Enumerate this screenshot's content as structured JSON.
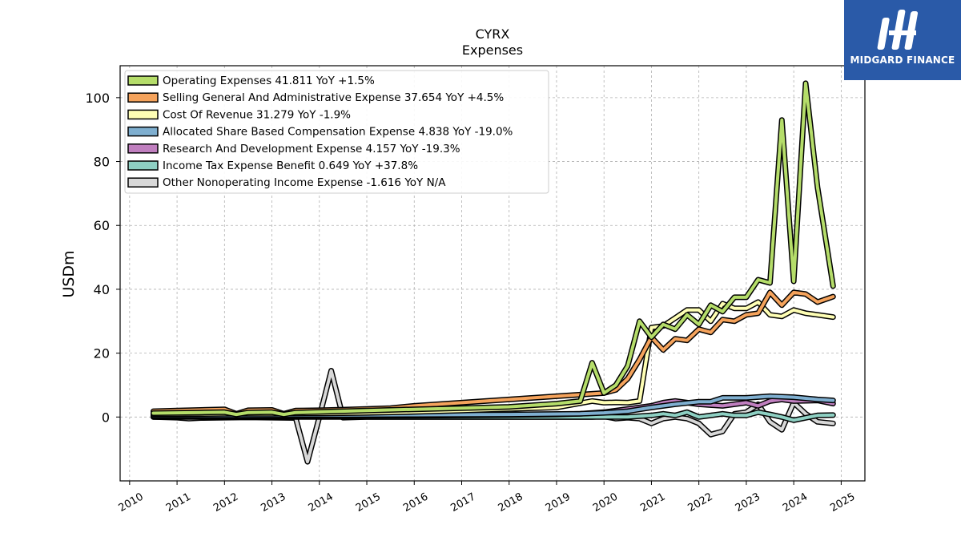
{
  "brand": {
    "name": "MIDGARD FINANCE",
    "color": "#2a5aa8"
  },
  "chart_data": {
    "type": "line",
    "title": "CYRX",
    "subtitle": "Expenses",
    "xlabel": "",
    "ylabel": "USDm",
    "xlim": [
      2009.8,
      2025.5
    ],
    "ylim": [
      -20,
      110
    ],
    "grid": true,
    "legend_position": "top-left",
    "x_ticks": [
      "2010",
      "2011",
      "2012",
      "2013",
      "2014",
      "2015",
      "2016",
      "2017",
      "2018",
      "2019",
      "2020",
      "2021",
      "2022",
      "2023",
      "2024",
      "2025"
    ],
    "y_ticks": [
      "0",
      "20",
      "40",
      "60",
      "80",
      "100"
    ],
    "series": [
      {
        "name": "Operating Expenses",
        "legend": "Operating Expenses  41.811 YoY +1.5%",
        "color": "#b5dd6a",
        "x": [
          2010.5,
          2011.0,
          2011.5,
          2012.0,
          2012.25,
          2012.5,
          2013.0,
          2013.25,
          2013.5,
          2014.0,
          2015.0,
          2016.0,
          2017.0,
          2018.0,
          2019.0,
          2019.5,
          2019.75,
          2020.0,
          2020.25,
          2020.5,
          2020.75,
          2021.0,
          2021.25,
          2021.5,
          2021.75,
          2022.0,
          2022.25,
          2022.5,
          2022.75,
          2023.0,
          2023.25,
          2023.5,
          2023.75,
          2024.0,
          2024.25,
          2024.5,
          2024.83
        ],
        "y": [
          1.2,
          1.3,
          1.4,
          1.5,
          0.8,
          1.4,
          1.5,
          0.8,
          1.4,
          1.6,
          2.0,
          2.4,
          2.8,
          3.2,
          4.2,
          5.0,
          17.0,
          7.5,
          10.0,
          16.0,
          30.0,
          25.0,
          29.0,
          27.5,
          32.0,
          29.0,
          35.0,
          33.0,
          37.5,
          37.5,
          43.0,
          42.0,
          93.0,
          42.5,
          104.5,
          72.0,
          41.0
        ]
      },
      {
        "name": "Selling General And Administrative Expense",
        "legend": "Selling General And Administrative Expense  37.654 YoY +4.5%",
        "color": "#f5a35c",
        "x": [
          2010.5,
          2011.0,
          2011.5,
          2012.0,
          2012.25,
          2012.5,
          2013.0,
          2013.25,
          2013.5,
          2014.0,
          2014.5,
          2015.0,
          2015.5,
          2016.0,
          2017.0,
          2018.0,
          2019.0,
          2019.5,
          2020.0,
          2020.25,
          2020.5,
          2020.75,
          2021.0,
          2021.25,
          2021.5,
          2021.75,
          2022.0,
          2022.25,
          2022.5,
          2022.75,
          2023.0,
          2023.25,
          2023.5,
          2023.75,
          2024.0,
          2024.25,
          2024.5,
          2024.83
        ],
        "y": [
          1.8,
          2.0,
          2.2,
          2.4,
          1.0,
          2.1,
          2.2,
          1.0,
          2.0,
          2.1,
          2.3,
          2.5,
          2.8,
          3.5,
          4.5,
          5.5,
          6.5,
          7.0,
          7.5,
          8.5,
          12.0,
          18.0,
          25.0,
          21.0,
          24.5,
          24.0,
          27.5,
          26.5,
          30.5,
          30.0,
          32.0,
          32.5,
          39.0,
          35.0,
          39.0,
          38.5,
          36.0,
          37.7
        ]
      },
      {
        "name": "Cost Of Revenue",
        "legend": "Cost Of Revenue  31.279 YoY -1.9%",
        "color": "#fefeb4",
        "x": [
          2010.5,
          2011.0,
          2012.0,
          2013.0,
          2014.0,
          2015.0,
          2016.0,
          2017.0,
          2018.0,
          2019.0,
          2019.75,
          2020.0,
          2020.25,
          2020.5,
          2020.75,
          2021.0,
          2021.25,
          2021.5,
          2021.75,
          2022.0,
          2022.25,
          2022.5,
          2022.75,
          2023.0,
          2023.25,
          2023.5,
          2023.75,
          2024.0,
          2024.25,
          2024.5,
          2024.83
        ],
        "y": [
          0.9,
          0.9,
          1.0,
          1.0,
          1.1,
          1.3,
          1.6,
          2.0,
          2.5,
          3.0,
          5.0,
          4.5,
          4.6,
          4.5,
          5.0,
          28.0,
          28.5,
          31.0,
          33.5,
          33.5,
          30.0,
          35.5,
          34.0,
          34.0,
          36.0,
          32.0,
          31.5,
          33.5,
          32.5,
          32.0,
          31.3
        ]
      },
      {
        "name": "Allocated Share Based Compensation Expense",
        "legend": "Allocated Share Based Compensation Expense  4.838 YoY -19.0%",
        "color": "#7fafd0",
        "x": [
          2010.5,
          2012.0,
          2014.0,
          2016.0,
          2018.0,
          2019.5,
          2020.0,
          2020.5,
          2021.0,
          2021.5,
          2022.0,
          2022.25,
          2022.5,
          2023.0,
          2023.5,
          2024.0,
          2024.5,
          2024.83
        ],
        "y": [
          0.5,
          0.5,
          0.6,
          0.7,
          0.8,
          1.0,
          1.3,
          1.8,
          3.0,
          4.0,
          4.8,
          4.8,
          6.0,
          6.0,
          6.5,
          6.2,
          5.5,
          5.2
        ]
      },
      {
        "name": "Research And Development Expense",
        "legend": "Research And Development Expense  4.157 YoY -19.3%",
        "color": "#c07fbf",
        "x": [
          2010.5,
          2012.0,
          2014.0,
          2016.0,
          2018.0,
          2019.0,
          2019.5,
          2020.0,
          2020.5,
          2021.0,
          2021.25,
          2021.5,
          2022.0,
          2022.5,
          2023.0,
          2023.25,
          2023.5,
          2023.75,
          2024.0,
          2024.5,
          2024.83
        ],
        "y": [
          0.2,
          0.2,
          0.3,
          0.4,
          0.6,
          0.8,
          1.0,
          1.5,
          2.5,
          3.5,
          4.5,
          5.0,
          4.0,
          3.5,
          4.5,
          3.5,
          5.0,
          5.5,
          5.0,
          5.2,
          4.2
        ]
      },
      {
        "name": "Income Tax Expense Benefit",
        "legend": "Income Tax Expense Benefit  0.649 YoY +37.8%",
        "color": "#8ed0c3",
        "x": [
          2010.5,
          2012.0,
          2014.0,
          2016.0,
          2018.0,
          2020.0,
          2020.5,
          2021.0,
          2021.25,
          2021.5,
          2021.75,
          2022.0,
          2022.25,
          2022.5,
          2022.75,
          2023.0,
          2023.25,
          2023.5,
          2023.75,
          2024.0,
          2024.5,
          2024.83
        ],
        "y": [
          0.0,
          0.0,
          0.0,
          0.0,
          0.0,
          0.0,
          0.0,
          0.5,
          1.0,
          0.5,
          1.5,
          0.0,
          0.5,
          1.0,
          0.5,
          0.5,
          1.5,
          0.8,
          0.0,
          -1.0,
          0.5,
          0.6
        ]
      },
      {
        "name": "Other Nonoperating Income Expense",
        "legend": "Other Nonoperating Income Expense  -1.616 YoY N/A",
        "color": "#d8d8d8",
        "x": [
          2010.5,
          2011.0,
          2011.25,
          2011.5,
          2012.0,
          2012.5,
          2013.0,
          2013.5,
          2013.75,
          2014.0,
          2014.25,
          2014.5,
          2015.0,
          2016.0,
          2017.0,
          2018.0,
          2019.0,
          2019.75,
          2020.0,
          2020.25,
          2020.5,
          2020.75,
          2021.0,
          2021.25,
          2021.5,
          2021.75,
          2022.0,
          2022.25,
          2022.5,
          2022.75,
          2023.0,
          2023.25,
          2023.5,
          2023.75,
          2024.0,
          2024.25,
          2024.5,
          2024.83
        ],
        "y": [
          0.0,
          -0.2,
          -0.5,
          -0.3,
          -0.2,
          -0.1,
          -0.2,
          -0.3,
          -14.0,
          0.0,
          14.5,
          -0.2,
          0.0,
          0.0,
          0.0,
          0.0,
          0.0,
          0.0,
          0.2,
          -0.5,
          -0.2,
          -0.5,
          -2.0,
          -0.5,
          0.0,
          -0.5,
          -2.0,
          -5.5,
          -4.5,
          1.0,
          1.5,
          4.0,
          -1.5,
          -4.0,
          4.5,
          1.0,
          -1.5,
          -2.0
        ]
      }
    ]
  }
}
